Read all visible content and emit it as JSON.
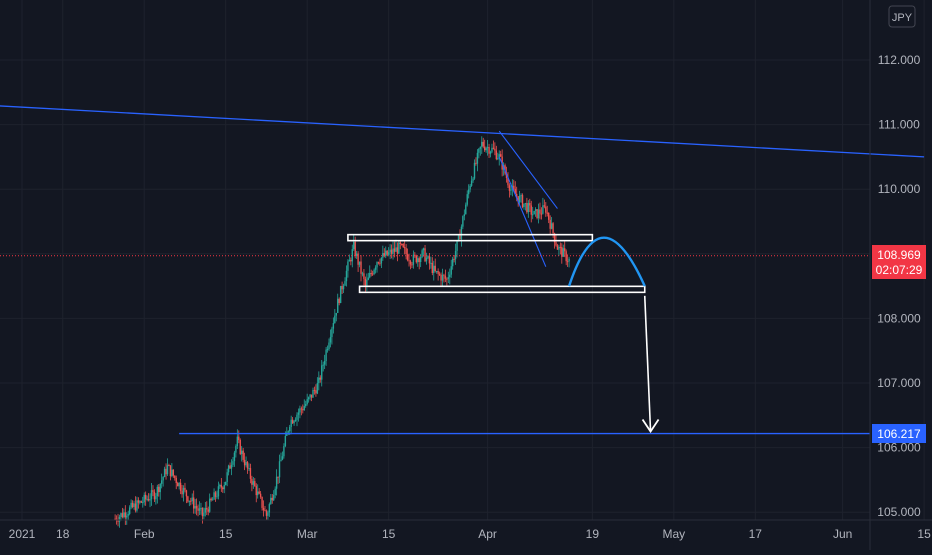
{
  "header": {
    "currency_badge": "JPY"
  },
  "price_labels": {
    "current_price": "108.969",
    "countdown": "02:07:29",
    "target_price": "106.217"
  },
  "colors": {
    "background": "#131722",
    "grid": "#1e222d",
    "axis_text": "#b2b5be",
    "bull": "#26a69a",
    "bear": "#ef5350",
    "trendline": "#2962ff",
    "arc": "#2196f3",
    "zone": "#ffffff",
    "price_line": "#f23645",
    "target_line": "#2962ff"
  },
  "chart_data": {
    "type": "candlestick",
    "title": "",
    "xlabel": "",
    "ylabel": "",
    "y_axis_ticks": [
      "112.000",
      "111.000",
      "110.000",
      "109.000",
      "108.000",
      "107.000",
      "106.000",
      "105.000"
    ],
    "x_axis_ticks": [
      {
        "label": "2021",
        "date": "2021-01-11"
      },
      {
        "label": "18",
        "date": "2021-01-18"
      },
      {
        "label": "Feb",
        "date": "2021-02-01"
      },
      {
        "label": "15",
        "date": "2021-02-15"
      },
      {
        "label": "Mar",
        "date": "2021-03-01"
      },
      {
        "label": "15",
        "date": "2021-03-15"
      },
      {
        "label": "Apr",
        "date": "2021-04-01"
      },
      {
        "label": "19",
        "date": "2021-04-19"
      },
      {
        "label": "May",
        "date": "2021-05-03"
      },
      {
        "label": "17",
        "date": "2021-05-17"
      },
      {
        "label": "Jun",
        "date": "2021-06-01"
      },
      {
        "label": "15",
        "date": "2021-06-15"
      }
    ],
    "ylim": [
      104.9,
      112.4
    ],
    "grid": true,
    "current_price": 108.969,
    "price_path": [
      {
        "date": "2021-01-27",
        "price": 104.9
      },
      {
        "date": "2021-02-03",
        "price": 105.3
      },
      {
        "date": "2021-02-05",
        "price": 105.7
      },
      {
        "date": "2021-02-08",
        "price": 105.3
      },
      {
        "date": "2021-02-11",
        "price": 104.95
      },
      {
        "date": "2021-02-15",
        "price": 105.5
      },
      {
        "date": "2021-02-17",
        "price": 106.1
      },
      {
        "date": "2021-02-19",
        "price": 105.6
      },
      {
        "date": "2021-02-22",
        "price": 104.95
      },
      {
        "date": "2021-02-24",
        "price": 105.6
      },
      {
        "date": "2021-02-26",
        "price": 106.4
      },
      {
        "date": "2021-03-01",
        "price": 106.7
      },
      {
        "date": "2021-03-03",
        "price": 107.0
      },
      {
        "date": "2021-03-05",
        "price": 107.8
      },
      {
        "date": "2021-03-07",
        "price": 108.5
      },
      {
        "date": "2021-03-09",
        "price": 109.1
      },
      {
        "date": "2021-03-11",
        "price": 108.5
      },
      {
        "date": "2021-03-13",
        "price": 108.9
      },
      {
        "date": "2021-03-15",
        "price": 109.0
      },
      {
        "date": "2021-03-17",
        "price": 109.1
      },
      {
        "date": "2021-03-19",
        "price": 108.9
      },
      {
        "date": "2021-03-21",
        "price": 109.0
      },
      {
        "date": "2021-03-23",
        "price": 108.7
      },
      {
        "date": "2021-03-25",
        "price": 108.6
      },
      {
        "date": "2021-03-27",
        "price": 109.2
      },
      {
        "date": "2021-03-29",
        "price": 110.1
      },
      {
        "date": "2021-03-31",
        "price": 110.7
      },
      {
        "date": "2021-04-02",
        "price": 110.6
      },
      {
        "date": "2021-04-03",
        "price": 110.5
      },
      {
        "date": "2021-04-05",
        "price": 110.0
      },
      {
        "date": "2021-04-07",
        "price": 109.8
      },
      {
        "date": "2021-04-09",
        "price": 109.6
      },
      {
        "date": "2021-04-11",
        "price": 109.7
      },
      {
        "date": "2021-04-13",
        "price": 109.1
      },
      {
        "date": "2021-04-15",
        "price": 108.9
      }
    ],
    "drawings": {
      "descending_trendline": {
        "from": {
          "date": "2020-12-26",
          "price": 111.35
        },
        "to": {
          "date": "2021-06-15",
          "price": 110.5
        }
      },
      "wedge_upper": {
        "from": {
          "date": "2021-04-03",
          "price": 110.9
        },
        "to": {
          "date": "2021-04-13",
          "price": 109.7
        }
      },
      "wedge_lower": {
        "from": {
          "date": "2021-04-03",
          "price": 110.5
        },
        "to": {
          "date": "2021-04-11",
          "price": 108.8
        }
      },
      "resistance_zone": {
        "from": "2021-03-08",
        "to": "2021-04-19",
        "price": 109.25
      },
      "support_zone": {
        "from": "2021-03-10",
        "to": "2021-04-28",
        "price": 108.45
      },
      "projection_arc": {
        "from": {
          "date": "2021-04-15",
          "price": 108.5
        },
        "peak": {
          "date": "2021-04-21",
          "price": 109.25
        },
        "to": {
          "date": "2021-04-28",
          "price": 108.5
        }
      },
      "projection_arrow": {
        "from": {
          "date": "2021-04-28",
          "price": 108.35
        },
        "to": {
          "date": "2021-04-29",
          "price": 106.25
        }
      },
      "target_line": {
        "from": "2021-02-07",
        "price": 106.217
      }
    }
  }
}
